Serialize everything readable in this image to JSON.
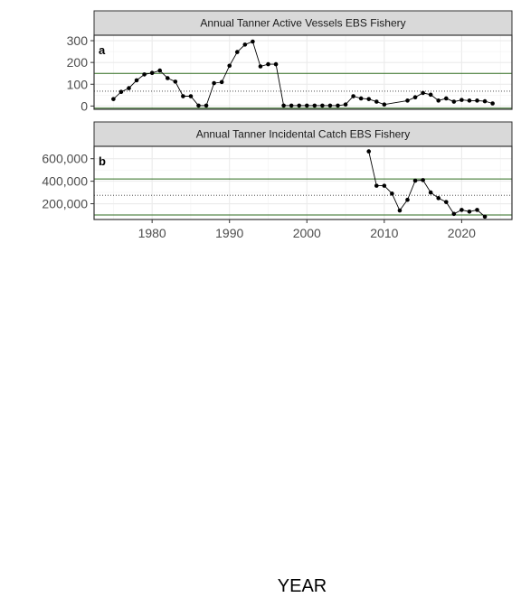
{
  "chart_data": {
    "type": "line",
    "xlabel": "YEAR",
    "x_ticks": [
      1980,
      1990,
      2000,
      2010,
      2020
    ],
    "xlim": [
      1972.5,
      2026.5
    ],
    "panels": [
      {
        "tag": "a",
        "title": "Annual Tanner Active Vessels EBS Fishery",
        "ylim": [
          -15,
          325
        ],
        "y_ticks": [
          0,
          100,
          200,
          300
        ],
        "y_tick_labels": [
          "0",
          "100",
          "200",
          "300"
        ],
        "reference_lines": {
          "upper_green": 150,
          "lower_green": -10,
          "mean_dotted": 68
        },
        "series": [
          {
            "x": [
              1975,
              1976,
              1977,
              1978,
              1979,
              1980,
              1981,
              1982,
              1983,
              1984,
              1985,
              1986,
              1987,
              1988,
              1989,
              1990,
              1991,
              1992,
              1993,
              1994,
              1995,
              1996,
              1997,
              1998,
              1999,
              2000,
              2001,
              2002,
              2003,
              2004,
              2005,
              2006,
              2007,
              2008,
              2009,
              2010,
              2013,
              2014,
              2015,
              2016,
              2017,
              2018,
              2019,
              2020,
              2021,
              2022,
              2023,
              2024
            ],
            "y": [
              32,
              65,
              82,
              118,
              145,
              152,
              163,
              128,
              112,
              45,
              45,
              2,
              2,
              105,
              110,
              185,
              248,
              282,
              296,
              182,
              192,
              192,
              2,
              2,
              2,
              2,
              2,
              2,
              2,
              2,
              7,
              45,
              35,
              32,
              20,
              7,
              25,
              40,
              60,
              52,
              25,
              35,
              20,
              28,
              25,
              25,
              22,
              12
            ]
          }
        ]
      },
      {
        "tag": "b",
        "title": "Annual Tanner Incidental Catch EBS Fishery",
        "ylim": [
          60000,
          710000
        ],
        "y_ticks": [
          200000,
          400000,
          600000
        ],
        "y_tick_labels": [
          "200,000",
          "400,000",
          "600,000"
        ],
        "reference_lines": {
          "upper_green": 420000,
          "lower_green": 100000,
          "mean_dotted": 275000
        },
        "series": [
          {
            "x": [
              2008,
              2009,
              2010,
              2011,
              2012,
              2013,
              2014,
              2015,
              2016,
              2017,
              2018,
              2019,
              2020,
              2021,
              2022,
              2023
            ],
            "y": [
              665000,
              360000,
              360000,
              290000,
              140000,
              235000,
              405000,
              410000,
              300000,
              250000,
              215000,
              110000,
              145000,
              130000,
              145000,
              85000
            ]
          }
        ]
      }
    ],
    "colors": {
      "line": "#000000",
      "reference_green": "#2e6b1f",
      "strip_fill": "#d9d9d9",
      "grid": "#ebebeb"
    },
    "grid": true,
    "legend": "none"
  }
}
